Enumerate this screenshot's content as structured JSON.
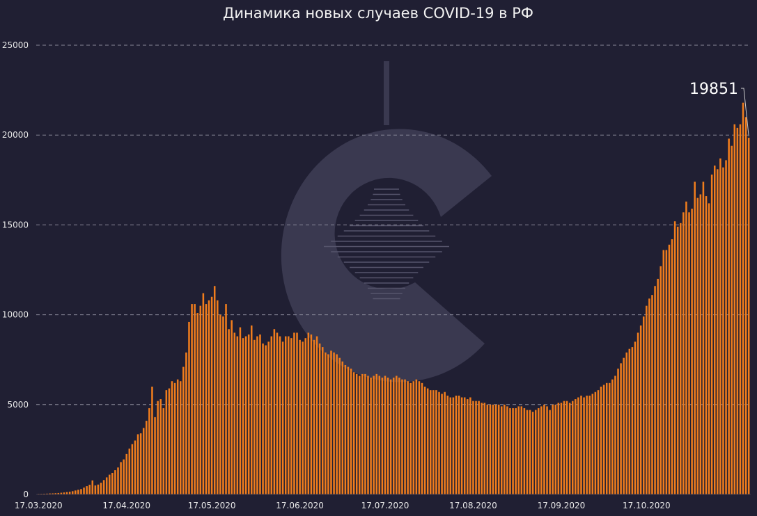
{
  "chart_data": {
    "type": "bar",
    "title": "Динамика новых случаев COVID-19 в РФ",
    "xlabel": "",
    "ylabel": "",
    "ylim": [
      0,
      25000
    ],
    "yticks": [
      0,
      5000,
      10000,
      15000,
      20000,
      25000
    ],
    "xtick_labels": [
      "17.03.2020",
      "17.04.2020",
      "17.05.2020",
      "17.06.2020",
      "17.07.2020",
      "17.08.2020",
      "17.09.2020",
      "17.10.2020"
    ],
    "grid": "horizontal dashed",
    "bar_color": "#f07d1d",
    "background_color": "#201f33",
    "start_date": "2020-03-17",
    "annotation": {
      "text": "19851",
      "value": 19851
    },
    "values": [
      30,
      35,
      40,
      45,
      55,
      60,
      70,
      80,
      95,
      110,
      130,
      150,
      180,
      220,
      260,
      300,
      380,
      460,
      540,
      780,
      500,
      550,
      650,
      800,
      950,
      1100,
      1200,
      1350,
      1500,
      1800,
      1950,
      2250,
      2550,
      2800,
      3000,
      3350,
      3400,
      3700,
      4100,
      4800,
      6000,
      4300,
      5200,
      5300,
      4800,
      5800,
      5900,
      6300,
      6200,
      6400,
      6300,
      7100,
      7900,
      9600,
      10600,
      10600,
      10100,
      10500,
      11200,
      10600,
      10800,
      11000,
      11600,
      10800,
      10000,
      9900,
      10600,
      9200,
      9700,
      9000,
      8800,
      9300,
      8700,
      8800,
      8900,
      9400,
      8600,
      8800,
      8900,
      8400,
      8300,
      8500,
      8800,
      9200,
      9000,
      8800,
      8500,
      8800,
      8800,
      8700,
      9000,
      9000,
      8600,
      8500,
      8700,
      9000,
      8900,
      8600,
      8800,
      8400,
      8200,
      7900,
      7800,
      8000,
      7900,
      7800,
      7600,
      7400,
      7200,
      7100,
      7000,
      6800,
      6700,
      6600,
      6700,
      6700,
      6600,
      6500,
      6600,
      6700,
      6600,
      6500,
      6600,
      6500,
      6400,
      6500,
      6600,
      6500,
      6400,
      6400,
      6300,
      6200,
      6300,
      6400,
      6300,
      6200,
      6000,
      5900,
      5800,
      5800,
      5800,
      5700,
      5600,
      5700,
      5500,
      5400,
      5400,
      5500,
      5500,
      5400,
      5400,
      5300,
      5400,
      5200,
      5200,
      5200,
      5100,
      5100,
      5000,
      5000,
      5000,
      5000,
      5000,
      4900,
      5000,
      4900,
      4800,
      4800,
      4800,
      4900,
      4900,
      4800,
      4700,
      4700,
      4600,
      4700,
      4800,
      4900,
      5000,
      4900,
      4700,
      5000,
      5000,
      5100,
      5100,
      5200,
      5200,
      5100,
      5200,
      5300,
      5400,
      5500,
      5400,
      5500,
      5500,
      5600,
      5700,
      5800,
      6000,
      6100,
      6200,
      6200,
      6400,
      6600,
      7000,
      7300,
      7600,
      7900,
      8100,
      8200,
      8500,
      9000,
      9400,
      9900,
      10500,
      10900,
      11100,
      11600,
      12000,
      12700,
      13600,
      13600,
      13900,
      14200,
      15200,
      14900,
      15100,
      15700,
      16300,
      15700,
      15900,
      17400,
      16500,
      16700,
      17400,
      16600,
      16200,
      17800,
      18300,
      18100,
      18700,
      18200,
      18600,
      19800,
      19400,
      20600,
      20400,
      20600,
      21800,
      21000,
      19851
    ]
  }
}
